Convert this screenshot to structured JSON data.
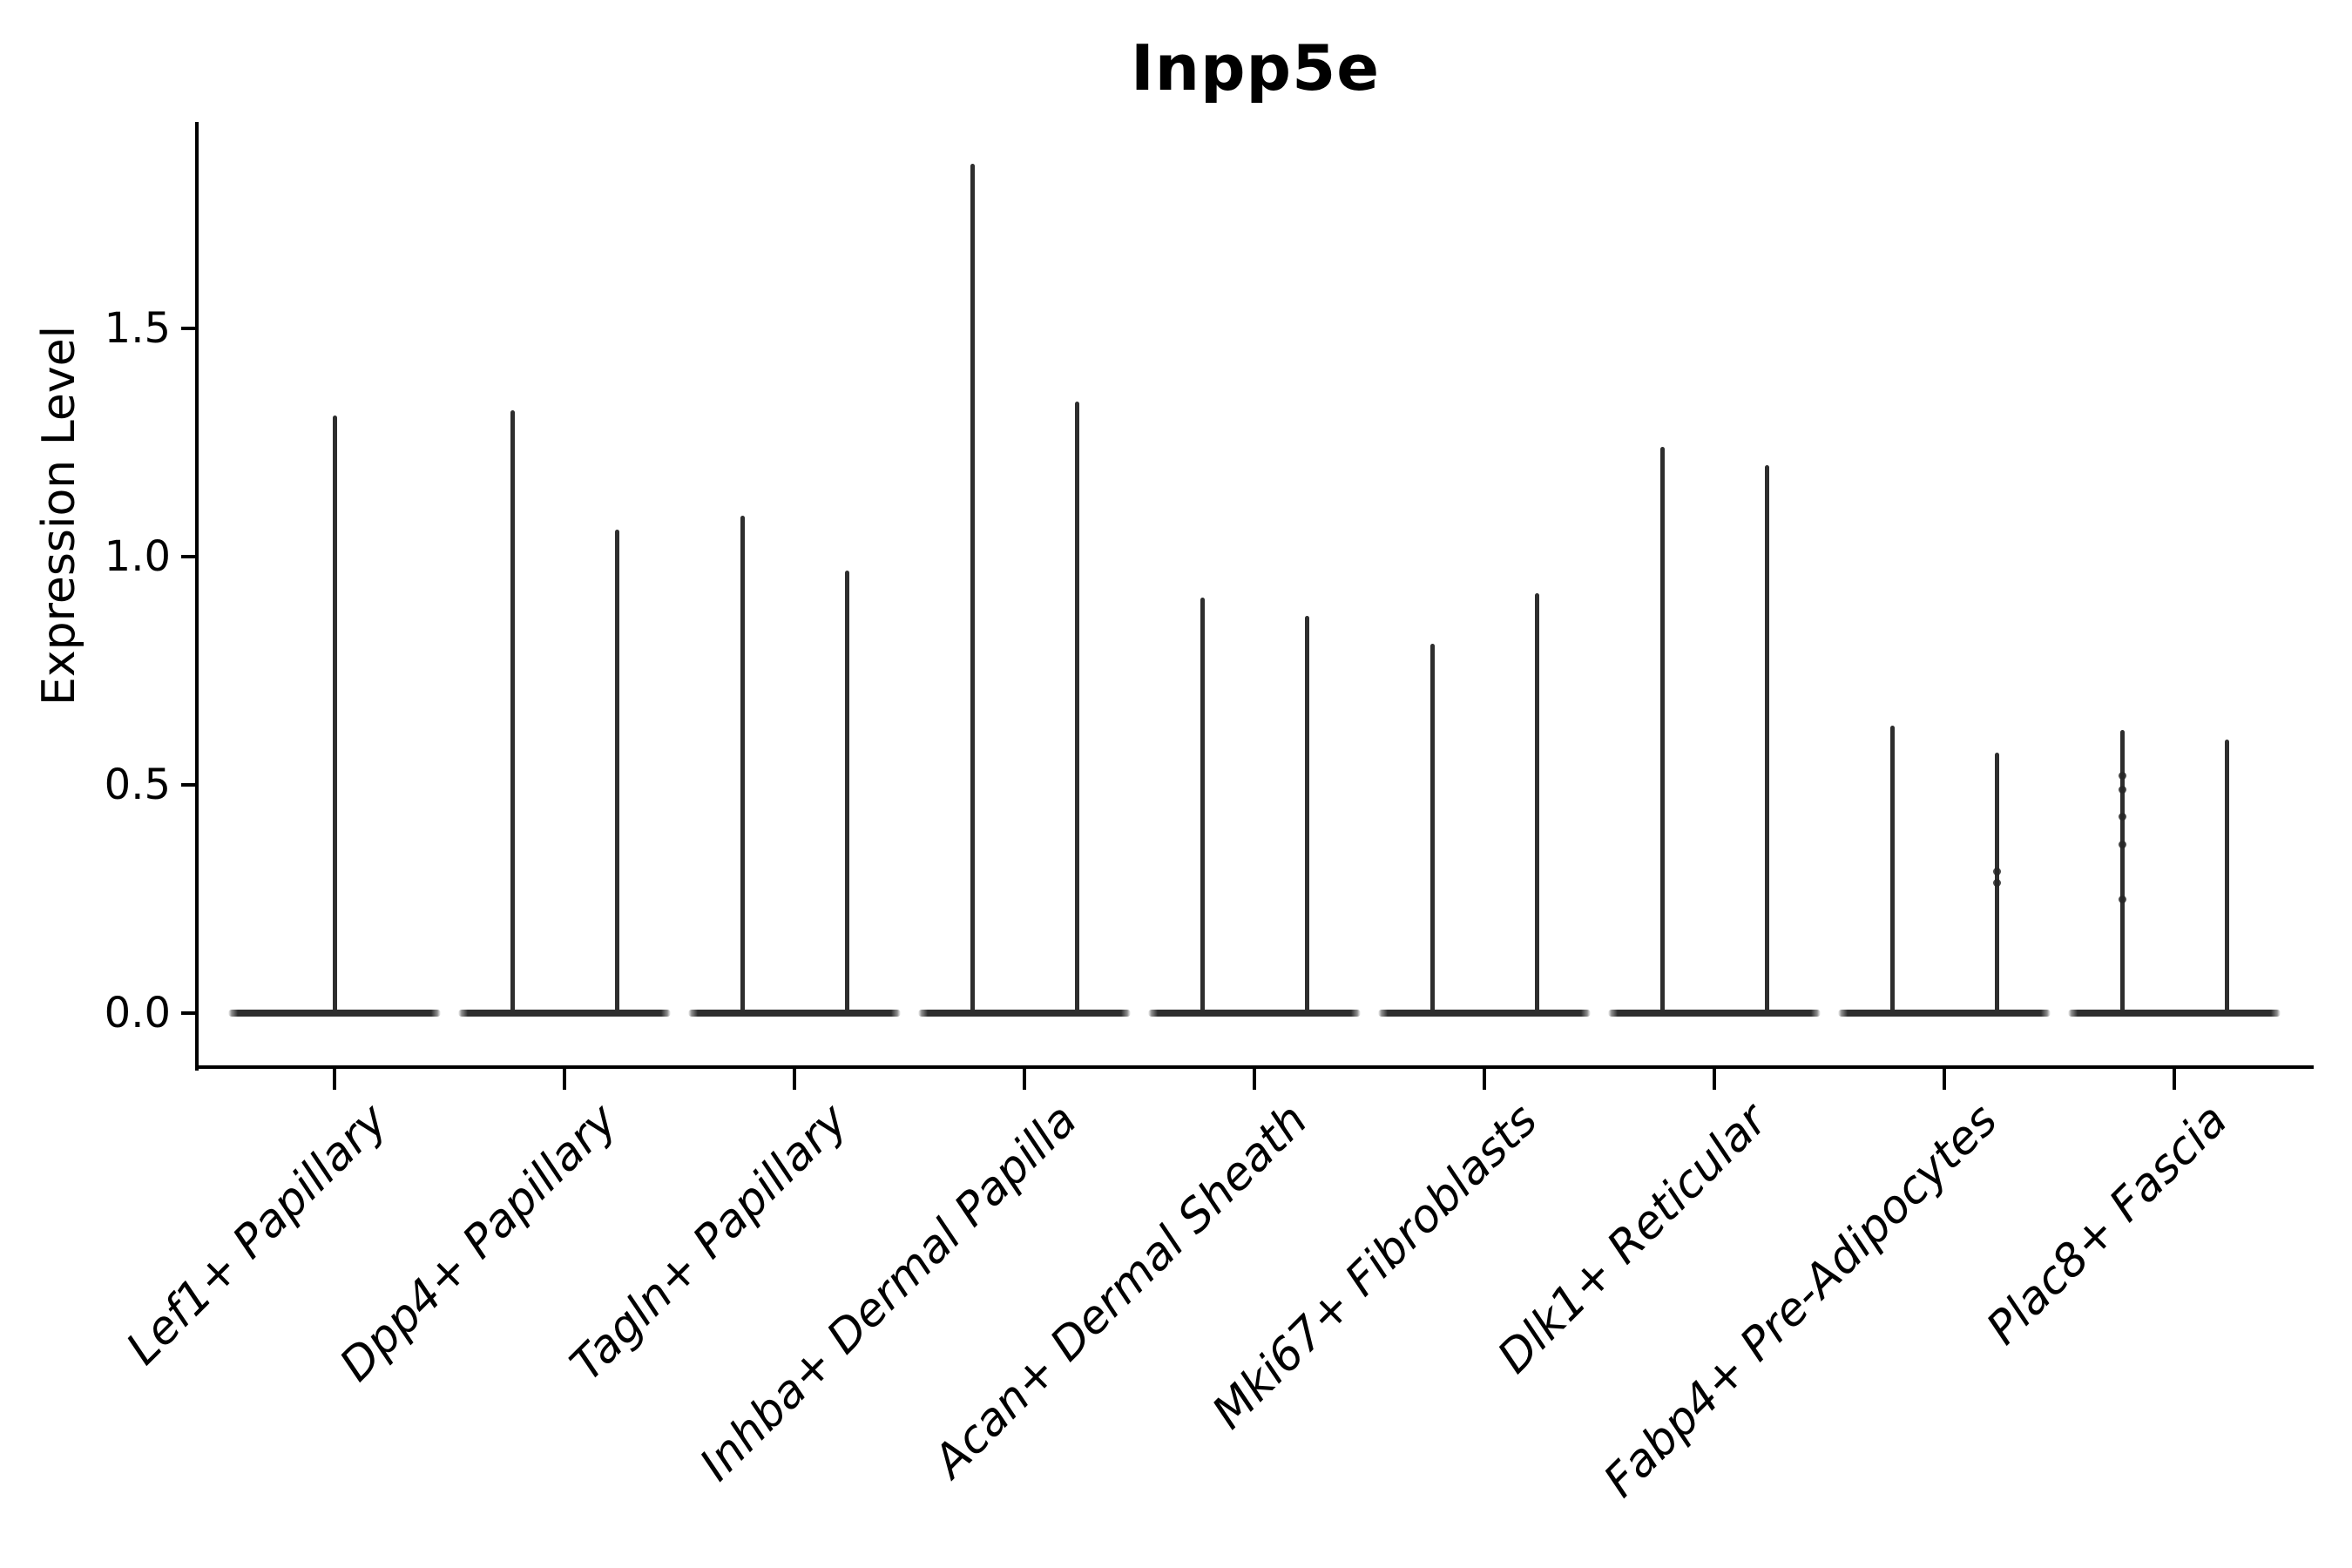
{
  "title": "Inpp5e",
  "ylabel": "Expression Level",
  "colors": {
    "violin_line": "#2e2e2e",
    "axis": "#000000",
    "background": "#ffffff"
  },
  "chart_data": {
    "type": "violin",
    "title": "Inpp5e",
    "xlabel": "",
    "ylabel": "Expression Level",
    "ylim": [
      0,
      1.95
    ],
    "yticks": [
      {
        "label": "0.0",
        "value": 0.0
      },
      {
        "label": "0.5",
        "value": 0.5
      },
      {
        "label": "1.0",
        "value": 1.0
      },
      {
        "label": "1.5",
        "value": 1.5
      }
    ],
    "grid": false,
    "legend": "none",
    "categories": [
      "Lef1+ Papillary",
      "Dpp4+ Papillary",
      "Tagln+ Papillary",
      "Inhba+ Dermal Papilla",
      "Acan+ Dermal Sheath",
      "Mki67+ Fibroblasts",
      "Dlk1+ Reticular",
      "Fabp4+ Pre-Adipocytes",
      "Plac8+ Fascia"
    ],
    "violins": [
      {
        "category": "Lef1+ Papillary",
        "spike_max_values": [
          1.31
        ],
        "baseline_value": 0
      },
      {
        "category": "Dpp4+ Papillary",
        "spike_max_values": [
          1.32,
          1.06
        ],
        "baseline_value": 0
      },
      {
        "category": "Tagln+ Papillary",
        "spike_max_values": [
          1.09,
          0.97
        ],
        "baseline_value": 0
      },
      {
        "category": "Inhba+ Dermal Papilla",
        "spike_max_values": [
          1.86,
          1.34
        ],
        "baseline_value": 0
      },
      {
        "category": "Acan+ Dermal Sheath",
        "spike_max_values": [
          0.91,
          0.87
        ],
        "baseline_value": 0
      },
      {
        "category": "Mki67+ Fibroblasts",
        "spike_max_values": [
          0.81,
          0.92
        ],
        "baseline_value": 0
      },
      {
        "category": "Dlk1+ Reticular",
        "spike_max_values": [
          1.24,
          1.2
        ],
        "baseline_value": 0
      },
      {
        "category": "Fabp4+ Pre-Adipocytes",
        "spike_max_values": [
          0.63,
          0.57
        ],
        "baseline_value": 0
      },
      {
        "category": "Plac8+ Fascia",
        "spike_max_values": [
          0.62,
          0.6
        ],
        "baseline_value": 0
      }
    ],
    "point_dots": [
      {
        "category_index": 7,
        "spike_index": 1,
        "values": [
          0.31,
          0.285
        ]
      },
      {
        "category_index": 8,
        "spike_index": 0,
        "values": [
          0.52,
          0.49,
          0.43,
          0.37,
          0.25
        ]
      }
    ]
  }
}
